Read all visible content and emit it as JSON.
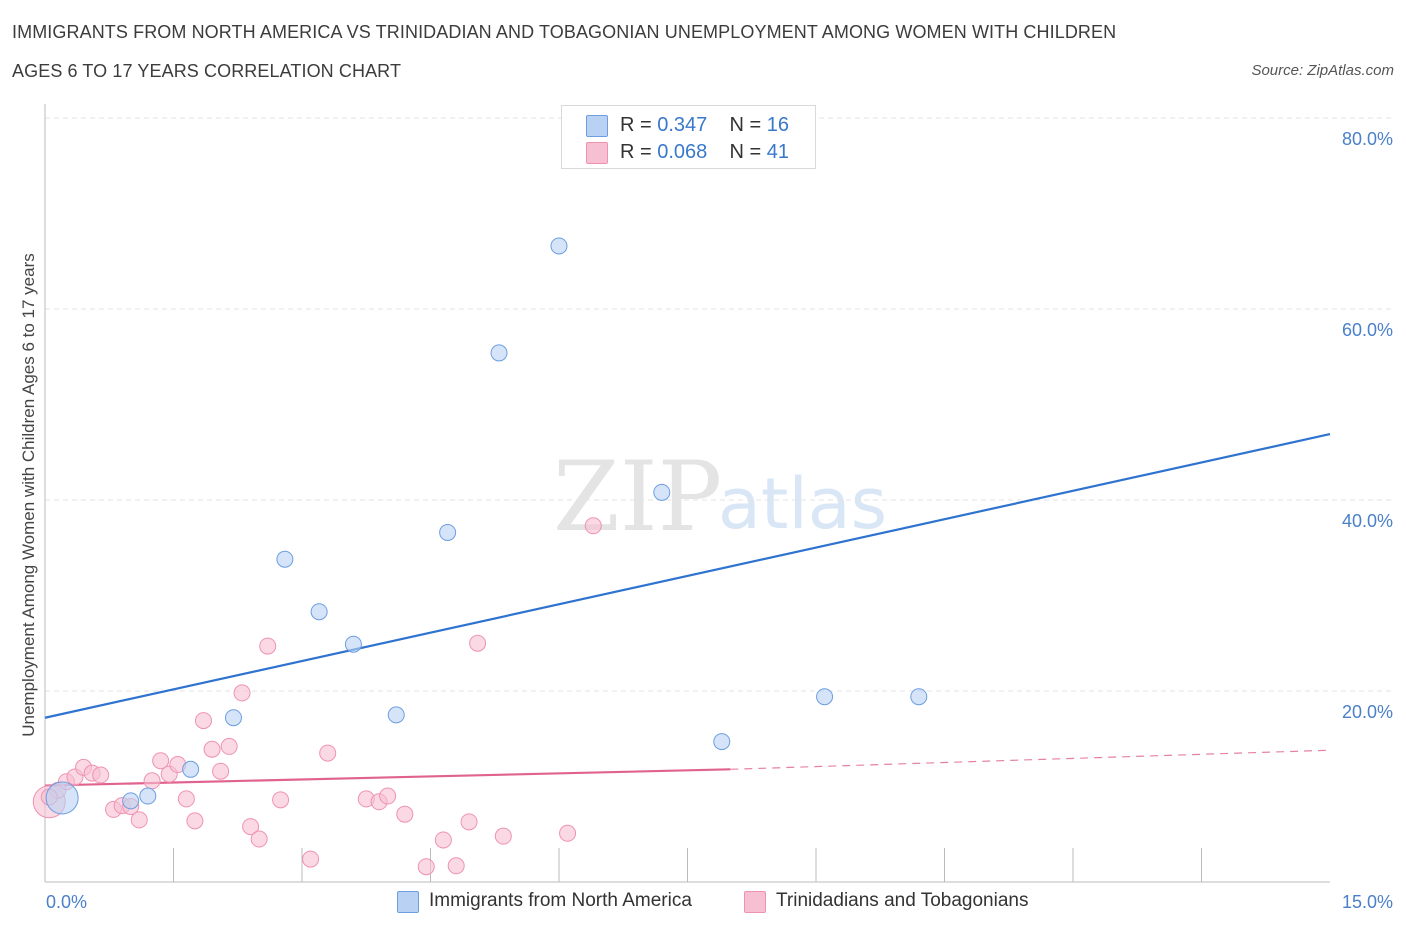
{
  "title_line1": "IMMIGRANTS FROM NORTH AMERICA VS TRINIDADIAN AND TOBAGONIAN UNEMPLOYMENT AMONG WOMEN WITH CHILDREN",
  "title_line2": "AGES 6 TO 17 YEARS CORRELATION CHART",
  "source": "Source: ZipAtlas.com",
  "watermark": {
    "zip": "ZIP",
    "atlas": "atlas"
  },
  "legend_top": [
    {
      "r_label": "R =",
      "r_value": "0.347",
      "n_label": "N =",
      "n_value": "16"
    },
    {
      "r_label": "R =",
      "r_value": "0.068",
      "n_label": "N =",
      "n_value": "41"
    }
  ],
  "legend_bottom": [
    {
      "label": "Immigrants from North America"
    },
    {
      "label": "Trinidadians and Tobagonians"
    }
  ],
  "colors": {
    "blue_fill": "#b9d2f3",
    "blue_stroke": "#6c9ee0",
    "blue_line": "#2f73d0",
    "pink_fill": "#f7c0d2",
    "pink_stroke": "#ef92b2",
    "pink_line": "#e0628f"
  },
  "chart_data": {
    "type": "scatter",
    "title": "IMMIGRANTS FROM NORTH AMERICA VS TRINIDADIAN AND TOBAGONIAN UNEMPLOYMENT AMONG WOMEN WITH CHILDREN AGES 6 TO 17 YEARS CORRELATION CHART",
    "xlabel": "",
    "ylabel": "Unemployment Among Women with Children Ages 6 to 17 years",
    "xlim": [
      0,
      15
    ],
    "ylim": [
      0,
      80
    ],
    "x_tick_labels": [
      "0.0%",
      "15.0%"
    ],
    "y_ticks": [
      20,
      40,
      60,
      80
    ],
    "y_tick_labels": [
      "20.0%",
      "40.0%",
      "60.0%",
      "80.0%"
    ],
    "grid": true,
    "series": [
      {
        "name": "Immigrants from North America",
        "color": "blue",
        "points": [
          {
            "x": 0.2,
            "y": 8.8,
            "size": "large"
          },
          {
            "x": 1.0,
            "y": 8.5
          },
          {
            "x": 1.2,
            "y": 9.0
          },
          {
            "x": 1.7,
            "y": 11.8
          },
          {
            "x": 2.2,
            "y": 17.2
          },
          {
            "x": 2.8,
            "y": 33.8
          },
          {
            "x": 3.2,
            "y": 28.3
          },
          {
            "x": 3.6,
            "y": 24.9
          },
          {
            "x": 4.1,
            "y": 17.5
          },
          {
            "x": 4.7,
            "y": 36.6
          },
          {
            "x": 5.3,
            "y": 55.4
          },
          {
            "x": 6.0,
            "y": 66.6
          },
          {
            "x": 7.2,
            "y": 40.8
          },
          {
            "x": 7.9,
            "y": 14.7
          },
          {
            "x": 9.1,
            "y": 19.4
          },
          {
            "x": 10.2,
            "y": 19.4
          }
        ],
        "trend": {
          "x": [
            0,
            15
          ],
          "y": [
            17.2,
            46.9
          ]
        }
      },
      {
        "name": "Trinidadians and Tobagonians",
        "color": "pink",
        "points": [
          {
            "x": 0.05,
            "y": 8.4,
            "size": "large"
          },
          {
            "x": 0.15,
            "y": 9.6
          },
          {
            "x": 0.25,
            "y": 10.5
          },
          {
            "x": 0.35,
            "y": 11.0
          },
          {
            "x": 0.45,
            "y": 12.0
          },
          {
            "x": 0.55,
            "y": 11.4
          },
          {
            "x": 0.65,
            "y": 11.2
          },
          {
            "x": 0.8,
            "y": 7.6
          },
          {
            "x": 0.9,
            "y": 8.0
          },
          {
            "x": 1.0,
            "y": 7.9
          },
          {
            "x": 1.1,
            "y": 6.5
          },
          {
            "x": 1.25,
            "y": 10.6
          },
          {
            "x": 1.35,
            "y": 12.7
          },
          {
            "x": 1.45,
            "y": 11.3
          },
          {
            "x": 1.55,
            "y": 12.3
          },
          {
            "x": 1.65,
            "y": 8.7
          },
          {
            "x": 1.75,
            "y": 6.4
          },
          {
            "x": 1.85,
            "y": 16.9
          },
          {
            "x": 1.95,
            "y": 13.9
          },
          {
            "x": 2.05,
            "y": 11.6
          },
          {
            "x": 2.15,
            "y": 14.2
          },
          {
            "x": 2.3,
            "y": 19.8
          },
          {
            "x": 2.4,
            "y": 5.8
          },
          {
            "x": 2.5,
            "y": 4.5
          },
          {
            "x": 2.6,
            "y": 24.7
          },
          {
            "x": 2.75,
            "y": 8.6
          },
          {
            "x": 3.1,
            "y": 2.4
          },
          {
            "x": 3.3,
            "y": 13.5
          },
          {
            "x": 3.75,
            "y": 8.7
          },
          {
            "x": 3.9,
            "y": 8.4
          },
          {
            "x": 4.0,
            "y": 9.0
          },
          {
            "x": 4.2,
            "y": 7.1
          },
          {
            "x": 4.45,
            "y": 1.6
          },
          {
            "x": 4.65,
            "y": 4.4
          },
          {
            "x": 4.8,
            "y": 1.7
          },
          {
            "x": 4.95,
            "y": 6.3
          },
          {
            "x": 5.05,
            "y": 25.0
          },
          {
            "x": 5.35,
            "y": 4.8
          },
          {
            "x": 6.1,
            "y": 5.1
          },
          {
            "x": 6.4,
            "y": 37.3
          },
          {
            "x": 0.05,
            "y": 8.9
          }
        ],
        "trend": {
          "x": [
            0,
            8.0
          ],
          "y": [
            10.1,
            11.8
          ]
        },
        "trend_dashed": {
          "x": [
            8.0,
            15
          ],
          "y": [
            11.8,
            13.8
          ]
        }
      }
    ]
  }
}
